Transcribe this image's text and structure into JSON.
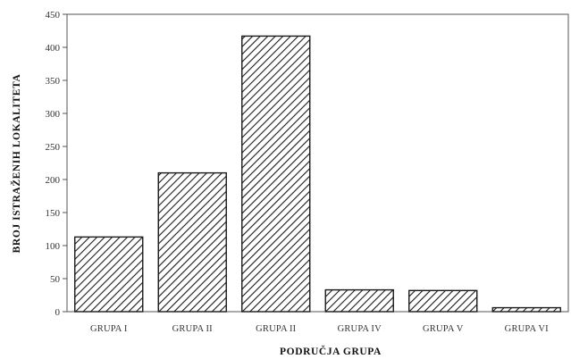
{
  "chart_data": {
    "type": "bar",
    "title": "",
    "xlabel": "PODRUČJA GRUPA",
    "ylabel": "BROJ ISTRAŽENIH LOKALITETA",
    "categories": [
      "GRUPA I",
      "GRUPA II",
      "GRUPA II",
      "GRUPA IV",
      "GRUPA V",
      "GRUPA VI"
    ],
    "values": [
      113,
      210,
      417,
      33,
      32,
      6
    ],
    "ylim": [
      0,
      450
    ],
    "yticks": [
      0,
      50,
      100,
      150,
      200,
      250,
      300,
      350,
      400,
      450
    ],
    "ytick_labels": [
      "0",
      "50",
      "100",
      "150",
      "200",
      "250",
      "300",
      "350",
      "400",
      "450"
    ],
    "grid": false,
    "bar_fill": "diagonal-hatch",
    "colors": {
      "bar_outline": "#1a1a1a",
      "hatch": "#1a1a1a",
      "axis": "#444444",
      "background": "#ffffff"
    }
  }
}
